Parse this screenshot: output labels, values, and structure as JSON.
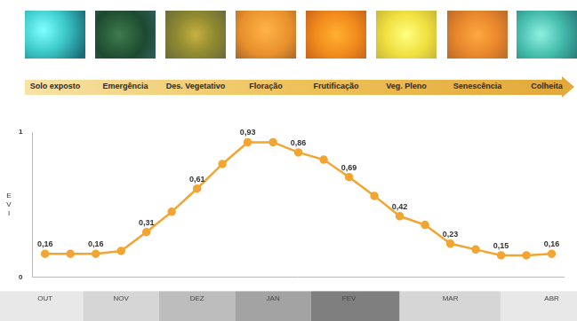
{
  "header": {
    "stages": [
      "Solo exposto",
      "Emergência",
      "Des. Vegetativo",
      "Floração",
      "Frutificação",
      "Veg. Pleno",
      "Senescência",
      "Colheita"
    ]
  },
  "chart_data": {
    "type": "line",
    "y_label": "EVI",
    "categories": [
      "OUT",
      null,
      null,
      "NOV",
      null,
      null,
      "DEZ",
      null,
      null,
      "JAN",
      null,
      null,
      "FEV",
      null,
      null,
      null,
      "MAR",
      null,
      null,
      null,
      "ABR"
    ],
    "values": [
      0.16,
      0.16,
      0.16,
      0.18,
      0.31,
      0.45,
      0.61,
      0.78,
      0.93,
      0.93,
      0.86,
      0.81,
      0.69,
      0.56,
      0.42,
      0.36,
      0.23,
      0.19,
      0.15,
      0.15,
      0.16
    ],
    "value_labels": [
      "0,16",
      null,
      "0,16",
      null,
      "0,31",
      null,
      "0,61",
      null,
      "0,93",
      null,
      "0,86",
      null,
      "0,69",
      null,
      "0,42",
      null,
      "0,23",
      null,
      "0,15",
      null,
      "0,16"
    ],
    "data_labels": true,
    "color": "#f2a531",
    "marker": "circle",
    "ylim": [
      0,
      1
    ],
    "yticks": [
      0,
      1
    ],
    "grid": false
  }
}
